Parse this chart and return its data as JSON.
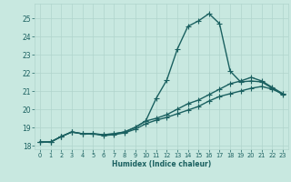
{
  "xlabel": "Humidex (Indice chaleur)",
  "xlim": [
    -0.5,
    23.5
  ],
  "ylim": [
    17.8,
    25.8
  ],
  "xticks": [
    0,
    1,
    2,
    3,
    4,
    5,
    6,
    7,
    8,
    9,
    10,
    11,
    12,
    13,
    14,
    15,
    16,
    17,
    18,
    19,
    20,
    21,
    22,
    23
  ],
  "yticks": [
    18,
    19,
    20,
    21,
    22,
    23,
    24,
    25
  ],
  "bg_color": "#c8e8e0",
  "line_color": "#1a6060",
  "grid_color": "#b0d4cc",
  "line1_x": [
    0,
    1,
    2,
    3,
    4,
    5,
    6,
    7,
    8,
    9,
    10,
    11,
    12,
    13,
    14,
    15,
    16,
    17,
    18,
    19,
    20,
    21,
    22,
    23
  ],
  "line1_y": [
    18.2,
    18.2,
    18.5,
    18.75,
    18.65,
    18.65,
    18.6,
    18.65,
    18.75,
    19.0,
    19.35,
    20.6,
    21.6,
    23.3,
    24.55,
    24.85,
    25.25,
    24.7,
    22.1,
    21.5,
    21.55,
    21.5,
    21.15,
    20.8
  ],
  "line2_x": [
    0,
    1,
    2,
    3,
    4,
    5,
    6,
    7,
    8,
    9,
    10,
    11,
    12,
    13,
    14,
    15,
    16,
    17,
    18,
    19,
    20,
    21,
    22,
    23
  ],
  "line2_y": [
    18.2,
    18.2,
    18.5,
    18.75,
    18.65,
    18.65,
    18.6,
    18.65,
    18.75,
    19.0,
    19.35,
    19.5,
    19.7,
    20.0,
    20.3,
    20.5,
    20.8,
    21.1,
    21.4,
    21.55,
    21.75,
    21.55,
    21.2,
    20.85
  ],
  "line3_x": [
    0,
    1,
    2,
    3,
    4,
    5,
    6,
    7,
    8,
    9,
    10,
    11,
    12,
    13,
    14,
    15,
    16,
    17,
    18,
    19,
    20,
    21,
    22,
    23
  ],
  "line3_y": [
    18.2,
    18.2,
    18.5,
    18.75,
    18.65,
    18.65,
    18.55,
    18.6,
    18.7,
    18.9,
    19.2,
    19.4,
    19.55,
    19.75,
    19.95,
    20.15,
    20.45,
    20.7,
    20.85,
    21.0,
    21.15,
    21.25,
    21.1,
    20.85
  ],
  "marker_size": 2.5,
  "line_width": 1.0
}
